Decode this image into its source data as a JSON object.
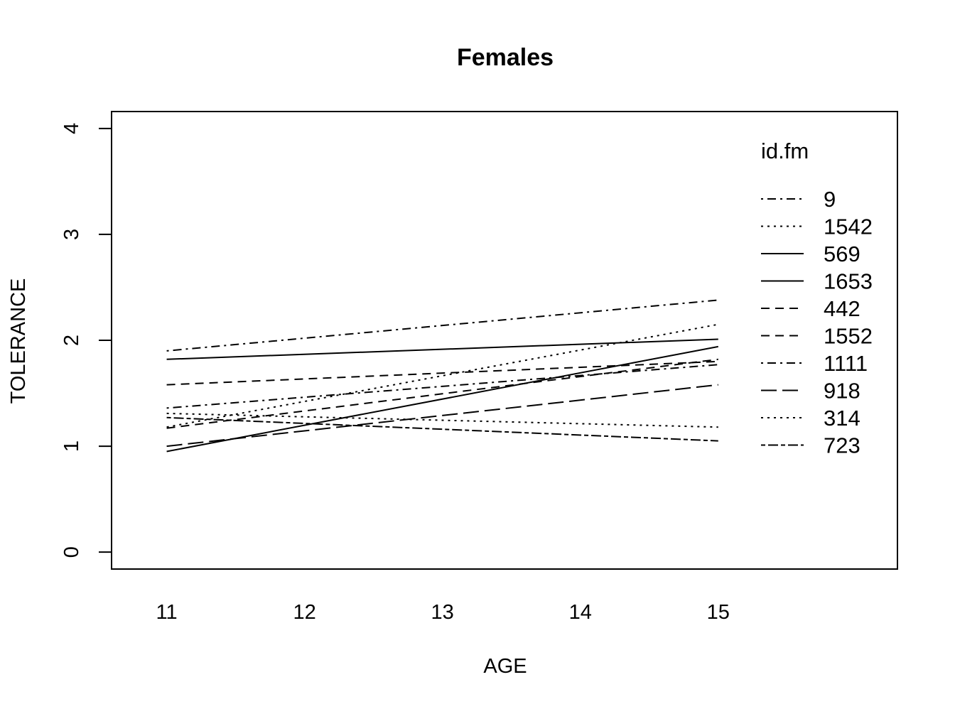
{
  "chart_data": {
    "type": "line",
    "title": "Females",
    "xlabel": "AGE",
    "ylabel": "TOLERANCE",
    "xlim": [
      10.6,
      16.3
    ],
    "ylim": [
      -0.16,
      4.16
    ],
    "x_ticks": [
      "11",
      "12",
      "13",
      "14",
      "15"
    ],
    "y_ticks": [
      "0",
      "1",
      "2",
      "3",
      "4"
    ],
    "grid": false,
    "legend_title": "id.fm",
    "legend_position": "top-right",
    "series": [
      {
        "name": "9",
        "dash": "dotdash",
        "x": [
          11,
          15
        ],
        "y": [
          1.9,
          2.38
        ]
      },
      {
        "name": "1542",
        "dash": "dotted",
        "x": [
          11,
          15
        ],
        "y": [
          1.18,
          2.15
        ]
      },
      {
        "name": "569",
        "dash": "solid",
        "x": [
          11,
          15
        ],
        "y": [
          0.95,
          1.94
        ]
      },
      {
        "name": "1653",
        "dash": "solid",
        "x": [
          11,
          15
        ],
        "y": [
          1.82,
          2.01
        ]
      },
      {
        "name": "442",
        "dash": "dashed",
        "x": [
          11,
          15
        ],
        "y": [
          1.58,
          1.8
        ]
      },
      {
        "name": "1552",
        "dash": "dashed",
        "x": [
          11,
          15
        ],
        "y": [
          1.17,
          1.82
        ]
      },
      {
        "name": "1111",
        "dash": "dotdash",
        "x": [
          11,
          15
        ],
        "y": [
          1.36,
          1.77
        ]
      },
      {
        "name": "918",
        "dash": "longdash",
        "x": [
          11,
          15
        ],
        "y": [
          1.0,
          1.58
        ]
      },
      {
        "name": "314",
        "dash": "dotted",
        "x": [
          11,
          15
        ],
        "y": [
          1.31,
          1.18
        ]
      },
      {
        "name": "723",
        "dash": "twodash",
        "x": [
          11,
          15
        ],
        "y": [
          1.27,
          1.05
        ]
      }
    ]
  }
}
